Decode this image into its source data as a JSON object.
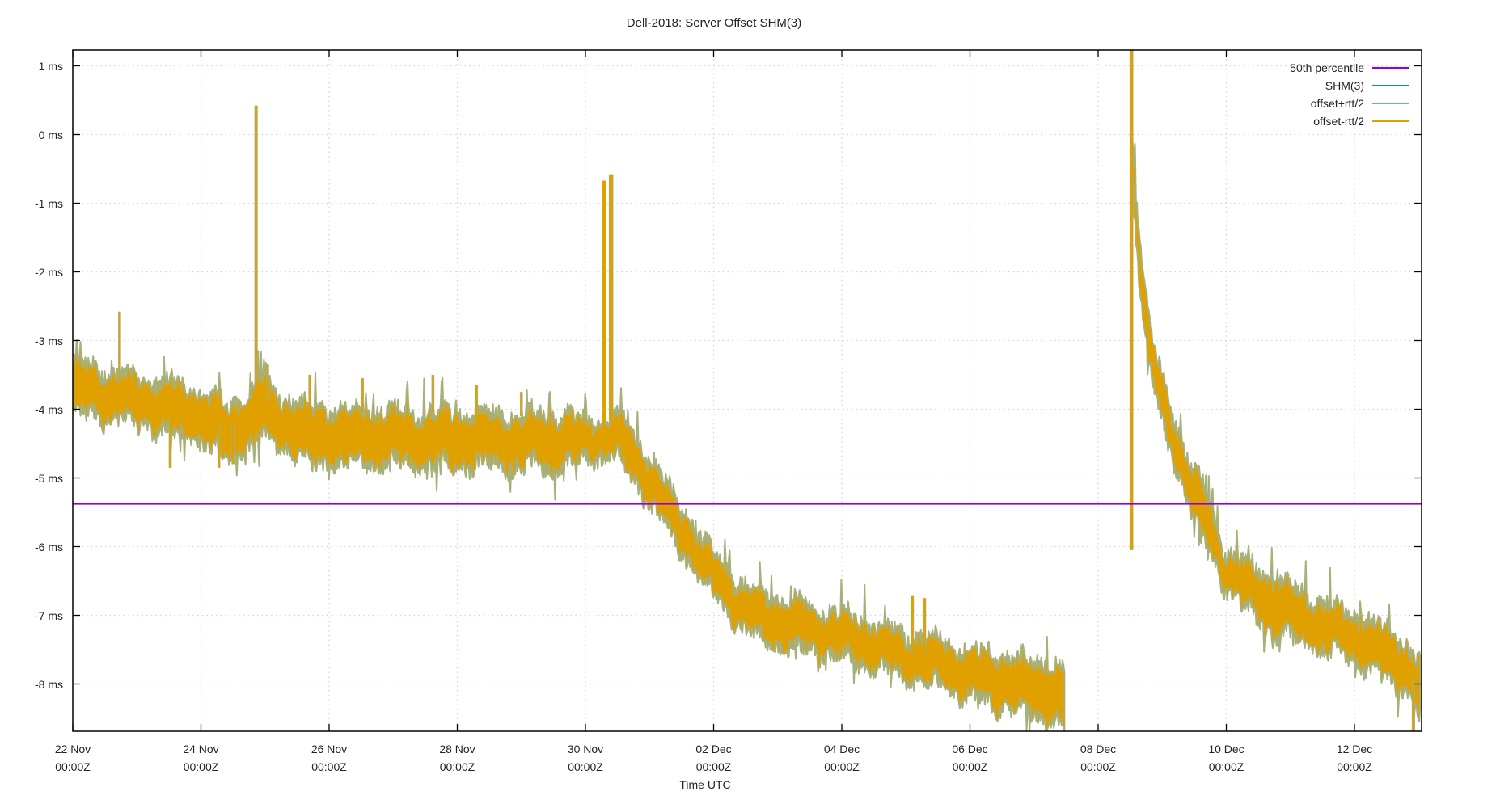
{
  "chart_data": {
    "type": "line",
    "title": "Dell-2018: Server Offset SHM(3)",
    "xlabel": "Time UTC",
    "ylabel": "",
    "y_unit": "ms",
    "grid": true,
    "legend_position": "top-right-inside",
    "ylim": [
      -8.69,
      1.23
    ],
    "xlim_days_from_22_nov": [
      0,
      21.05
    ],
    "y_ticks": [
      {
        "label": "1 ms",
        "value": 1
      },
      {
        "label": "0 ms",
        "value": 0
      },
      {
        "label": "-1 ms",
        "value": -1
      },
      {
        "label": "-2 ms",
        "value": -2
      },
      {
        "label": "-3 ms",
        "value": -3
      },
      {
        "label": "-4 ms",
        "value": -4
      },
      {
        "label": "-5 ms",
        "value": -5
      },
      {
        "label": "-6 ms",
        "value": -6
      },
      {
        "label": "-7 ms",
        "value": -7
      },
      {
        "label": "-8 ms",
        "value": -8
      }
    ],
    "x_ticks": [
      {
        "date": "22 Nov",
        "time": "00:00Z",
        "day": 0
      },
      {
        "date": "24 Nov",
        "time": "00:00Z",
        "day": 2
      },
      {
        "date": "26 Nov",
        "time": "00:00Z",
        "day": 4
      },
      {
        "date": "28 Nov",
        "time": "00:00Z",
        "day": 6
      },
      {
        "date": "30 Nov",
        "time": "00:00Z",
        "day": 8
      },
      {
        "date": "02 Dec",
        "time": "00:00Z",
        "day": 10
      },
      {
        "date": "04 Dec",
        "time": "00:00Z",
        "day": 12
      },
      {
        "date": "06 Dec",
        "time": "00:00Z",
        "day": 14
      },
      {
        "date": "08 Dec",
        "time": "00:00Z",
        "day": 16
      },
      {
        "date": "10 Dec",
        "time": "00:00Z",
        "day": 18
      },
      {
        "date": "12 Dec",
        "time": "00:00Z",
        "day": 20
      }
    ],
    "series": [
      {
        "name": "50th percentile",
        "color": "#9400d3",
        "type": "hline",
        "value": -5.38
      },
      {
        "name": "SHM(3)",
        "color": "#009e73",
        "type": "line",
        "visible_as": "fringe-behind-band"
      },
      {
        "name": "offset+rtt/2",
        "color": "#56b4e9",
        "type": "line",
        "visible_as": "fringe-behind-band"
      },
      {
        "name": "offset-rtt/2",
        "color": "#dfa000",
        "type": "noisy-band",
        "fringe_color": "#a8b07a",
        "segments": [
          {
            "envelope": [
              [
                0.0,
                -3.35,
                -4.05
              ],
              [
                0.5,
                -3.45,
                -4.1
              ],
              [
                1.0,
                -3.55,
                -4.2
              ],
              [
                1.6,
                -3.65,
                -4.35
              ],
              [
                2.1,
                -3.8,
                -4.5
              ],
              [
                2.35,
                -3.95,
                -4.75
              ],
              [
                2.6,
                -3.9,
                -4.6
              ],
              [
                2.95,
                -3.65,
                -4.4
              ],
              [
                3.3,
                -3.85,
                -4.55
              ],
              [
                3.7,
                -4.0,
                -4.8
              ],
              [
                4.5,
                -4.05,
                -4.75
              ],
              [
                5.5,
                -4.05,
                -4.8
              ],
              [
                6.5,
                -4.1,
                -4.8
              ],
              [
                7.5,
                -4.1,
                -4.85
              ],
              [
                8.1,
                -4.15,
                -4.7
              ],
              [
                8.45,
                -4.1,
                -4.65
              ],
              [
                8.6,
                -4.2,
                -4.8
              ],
              [
                8.85,
                -4.5,
                -5.15
              ],
              [
                9.1,
                -4.85,
                -5.5
              ],
              [
                9.35,
                -5.25,
                -5.85
              ],
              [
                9.6,
                -5.6,
                -6.2
              ],
              [
                9.85,
                -5.95,
                -6.5
              ],
              [
                10.1,
                -6.2,
                -6.8
              ],
              [
                10.4,
                -6.55,
                -7.15
              ],
              [
                10.7,
                -6.7,
                -7.35
              ],
              [
                11.2,
                -6.8,
                -7.45
              ],
              [
                11.8,
                -6.95,
                -7.55
              ],
              [
                12.4,
                -7.1,
                -7.7
              ],
              [
                13.0,
                -7.3,
                -7.9
              ],
              [
                13.6,
                -7.4,
                -8.05
              ],
              [
                14.2,
                -7.55,
                -8.25
              ],
              [
                14.8,
                -7.65,
                -8.4
              ],
              [
                15.2,
                -7.7,
                -8.5
              ],
              [
                15.48,
                -7.8,
                -8.6
              ]
            ]
          },
          {
            "envelope": [
              [
                16.53,
                0.05,
                -0.35
              ],
              [
                16.56,
                -0.35,
                -1.0
              ],
              [
                16.6,
                -0.9,
                -1.6
              ],
              [
                16.66,
                -1.6,
                -2.3
              ],
              [
                16.74,
                -2.3,
                -3.0
              ],
              [
                16.85,
                -3.0,
                -3.6
              ],
              [
                17.0,
                -3.6,
                -4.2
              ],
              [
                17.2,
                -4.2,
                -4.8
              ],
              [
                17.45,
                -4.8,
                -5.45
              ],
              [
                17.7,
                -5.4,
                -6.0
              ],
              [
                18.0,
                -6.05,
                -6.6
              ],
              [
                18.35,
                -6.3,
                -6.95
              ],
              [
                18.65,
                -6.45,
                -7.2
              ],
              [
                19.0,
                -6.6,
                -7.3
              ],
              [
                19.5,
                -6.85,
                -7.5
              ],
              [
                20.0,
                -7.0,
                -7.65
              ],
              [
                20.45,
                -7.2,
                -7.9
              ],
              [
                20.75,
                -7.35,
                -8.05
              ],
              [
                20.95,
                -7.6,
                -8.35
              ],
              [
                21.03,
                -7.7,
                -8.5
              ]
            ]
          }
        ],
        "spikes": [
          {
            "day": 0.73,
            "from": -3.6,
            "to": -2.58,
            "width": 2
          },
          {
            "day": 1.52,
            "from": -4.1,
            "to": -4.85,
            "width": 2
          },
          {
            "day": 2.28,
            "from": -4.2,
            "to": -4.85,
            "width": 2
          },
          {
            "day": 2.5,
            "from": -4.2,
            "to": -4.8,
            "width": 2
          },
          {
            "day": 2.86,
            "from": -3.6,
            "to": 0.42,
            "width": 2.5
          },
          {
            "day": 3.04,
            "from": -3.9,
            "to": -3.35,
            "width": 2
          },
          {
            "day": 3.7,
            "from": -4.0,
            "to": -3.5,
            "width": 2
          },
          {
            "day": 4.52,
            "from": -4.05,
            "to": -3.55,
            "width": 2
          },
          {
            "day": 5.62,
            "from": -4.05,
            "to": -3.5,
            "width": 2
          },
          {
            "day": 6.3,
            "from": -4.1,
            "to": -3.65,
            "width": 2
          },
          {
            "day": 7.0,
            "from": -4.1,
            "to": -3.75,
            "width": 2
          },
          {
            "day": 8.29,
            "from": -4.2,
            "to": -0.67,
            "width": 4
          },
          {
            "day": 8.4,
            "from": -4.2,
            "to": -0.58,
            "width": 4
          },
          {
            "day": 13.1,
            "from": -7.6,
            "to": -6.72,
            "width": 2.5
          },
          {
            "day": 13.29,
            "from": -7.6,
            "to": -6.75,
            "width": 2.5
          },
          {
            "day": 15.46,
            "from": -8.0,
            "to": -8.62,
            "width": 2
          },
          {
            "day": 16.52,
            "from": -6.05,
            "to": 1.25,
            "width": 3
          },
          {
            "day": 20.92,
            "from": -7.9,
            "to": -8.72,
            "width": 2.5
          }
        ]
      }
    ]
  }
}
